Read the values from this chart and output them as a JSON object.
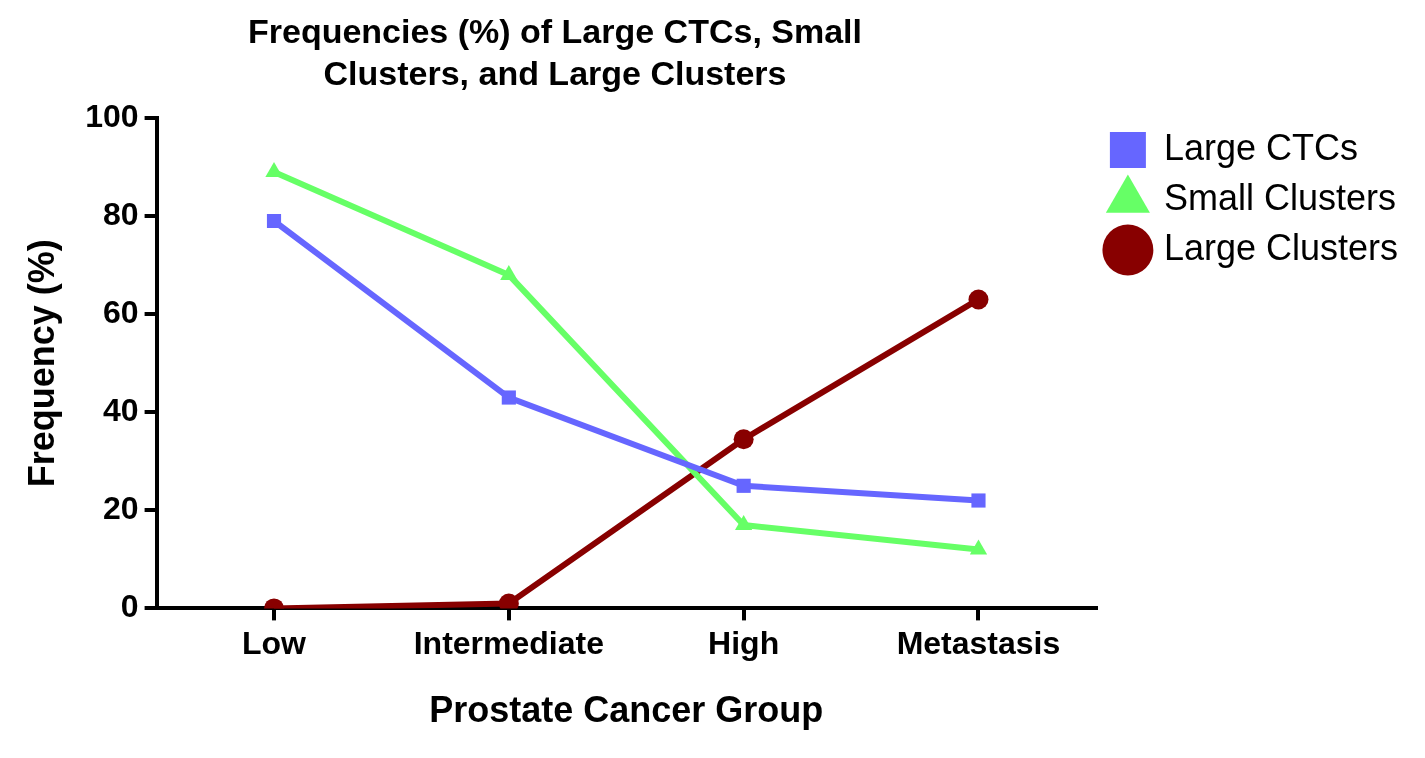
{
  "chart_data": {
    "type": "line",
    "title": "Frequencies (%) of Large CTCs, Small Clusters, and Large Clusters",
    "xlabel": "Prostate Cancer Group",
    "ylabel": "Frequency (%)",
    "categories": [
      "Low",
      "Intermediate",
      "High",
      "Metastasis"
    ],
    "series": [
      {
        "name": "Large CTCs",
        "color": "#6666ff",
        "marker": "square",
        "values": [
          79,
          43,
          25,
          22
        ]
      },
      {
        "name": "Small Clusters",
        "color": "#66ff66",
        "marker": "triangle",
        "values": [
          89,
          68,
          17,
          12
        ]
      },
      {
        "name": "Large Clusters",
        "color": "#880000",
        "marker": "circle",
        "values": [
          0,
          1,
          34.5,
          63
        ]
      }
    ],
    "ylim": [
      0,
      100
    ],
    "yticks": [
      0,
      20,
      40,
      60,
      80,
      100
    ],
    "grid": false,
    "legend": "top right"
  }
}
